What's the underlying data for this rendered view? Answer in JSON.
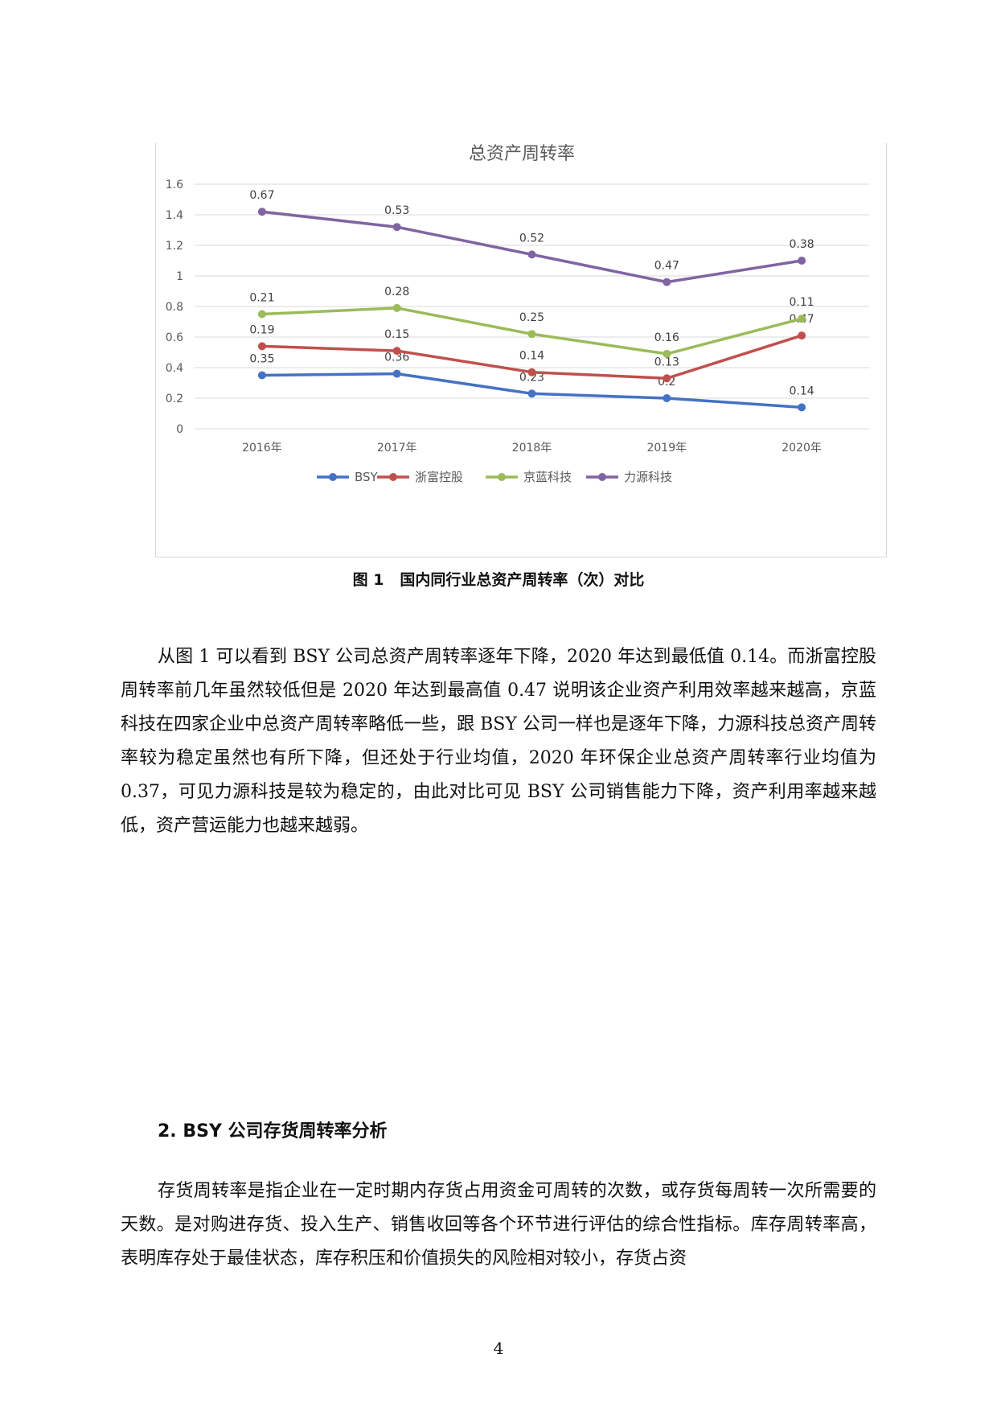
{
  "figure": {
    "caption": "图 1   国内同行业总资产周转率（次）对比"
  },
  "chart_data": {
    "type": "line",
    "title": "总资产周转率",
    "categories": [
      "2016年",
      "2017年",
      "2018年",
      "2019年",
      "2020年"
    ],
    "ylim": [
      0,
      1.6
    ],
    "yticks": [
      "0",
      "0.2",
      "0.4",
      "0.6",
      "0.8",
      "1",
      "1.2",
      "1.4",
      "1.6"
    ],
    "grid": true,
    "legend": "bottom",
    "series": [
      {
        "name": "BSY",
        "color": "#4472C4",
        "values": [
          0.35,
          0.36,
          0.23,
          0.2,
          0.14
        ],
        "labels": [
          "0.35",
          "0.36",
          "0.23",
          "0.2",
          "0.14"
        ]
      },
      {
        "name": "浙富控股",
        "color": "#C0504D",
        "values": [
          0.54,
          0.51,
          0.37,
          0.33,
          0.61
        ],
        "labels": [
          "0.19",
          "0.15",
          "0.14",
          "0.13",
          "0.47"
        ]
      },
      {
        "name": "京蓝科技",
        "color": "#9BBB59",
        "values": [
          0.75,
          0.79,
          0.62,
          0.49,
          0.72
        ],
        "labels": [
          "0.21",
          "0.28",
          "0.25",
          "0.16",
          "0.11"
        ]
      },
      {
        "name": "力源科技",
        "color": "#8064A2",
        "values": [
          1.42,
          1.32,
          1.14,
          0.96,
          1.1
        ],
        "labels": [
          "0.67",
          "0.53",
          "0.52",
          "0.47",
          "0.38"
        ]
      }
    ]
  },
  "body": {
    "paragraph1": "从图 1 可以看到 BSY 公司总资产周转率逐年下降，2020 年达到最低值 0.14。而浙富控股周转率前几年虽然较低但是 2020 年达到最高值 0.47 说明该企业资产利用效率越来越高，京蓝科技在四家企业中总资产周转率略低一些，跟 BSY 公司一样也是逐年下降，力源科技总资产周转率较为稳定虽然也有所下降，但还处于行业均值，2020 年环保企业总资产周转率行业均值为 0.37，可见力源科技是较为稳定的，由此对比可见 BSY 公司销售能力下降，资产利用率越来越低，资产营运能力也越来越弱。",
    "heading": "2. BSY 公司存货周转率分析",
    "paragraph2": "存货周转率是指企业在一定时期内存货占用资金可周转的次数，或存货每周转一次所需要的天数。是对购进存货、投入生产、销售收回等各个环节进行评估的综合性指标。库存周转率高，表明库存处于最佳状态，库存积压和价值损失的风险相对较小，存货占资"
  },
  "page_number": "4"
}
